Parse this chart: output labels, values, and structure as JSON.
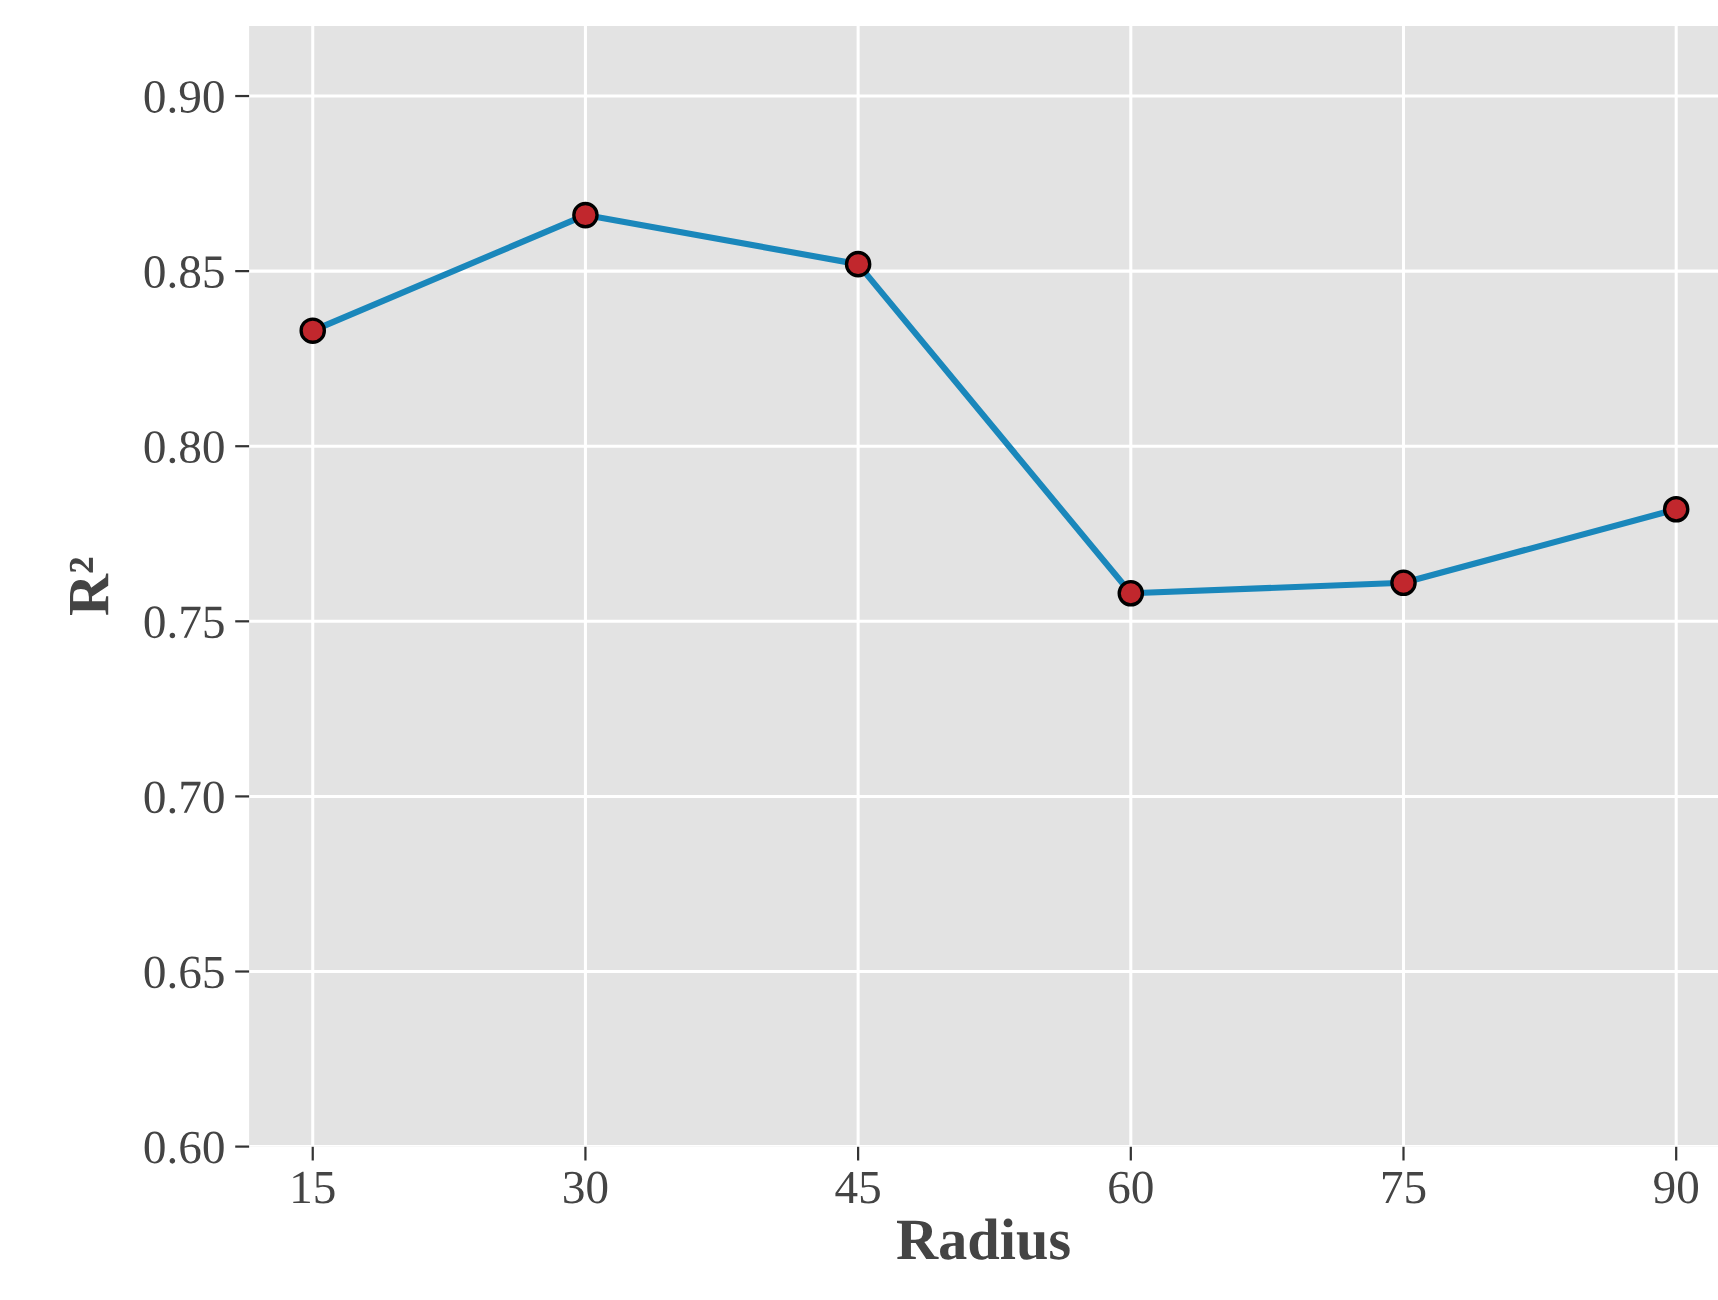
{
  "chart_data": {
    "type": "line",
    "xlabel": "Radius",
    "ylabel": "R²",
    "x": [
      15,
      30,
      45,
      60,
      75,
      90
    ],
    "series": [
      {
        "color": "#1a87bb",
        "colors": [
          "#c1272d",
          "#c1272d",
          "#c1272d",
          "#c1272d",
          "#c1272d",
          "#c1272d"
        ],
        "values": [
          0.833,
          0.866,
          0.852,
          0.758,
          0.761,
          0.782
        ]
      }
    ],
    "marker": "circle",
    "line_style": "solid",
    "xlim": [
      11.5,
      92.3
    ],
    "xticks": [
      15,
      30,
      45,
      60,
      75,
      90
    ],
    "ylim": [
      0.6,
      0.92
    ],
    "yticks": [
      {
        "value": 0.6,
        "label": "0.60"
      },
      {
        "value": 0.65,
        "label": "0.65"
      },
      {
        "value": 0.7,
        "label": "0.70"
      },
      {
        "value": 0.75,
        "label": "0.75"
      },
      {
        "value": 0.8,
        "label": "0.80"
      },
      {
        "value": 0.85,
        "label": "0.85"
      },
      {
        "value": 0.9,
        "label": "0.90"
      }
    ],
    "grid": true,
    "legend": false
  }
}
